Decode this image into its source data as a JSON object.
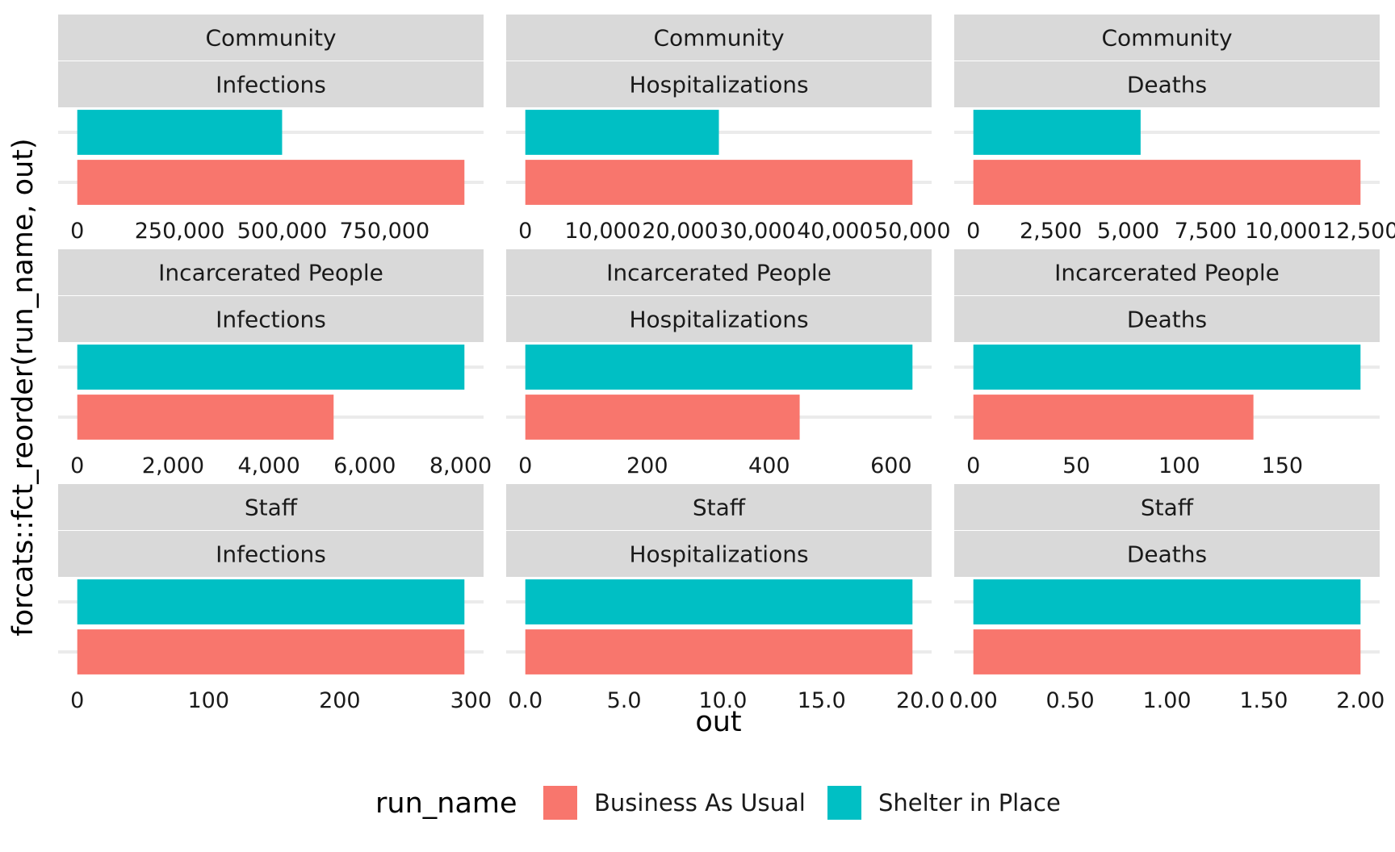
{
  "chart_data": {
    "type": "bar",
    "orientation": "horizontal",
    "facet_layout": "3x3 grid, independent x scales",
    "xlabel": "out",
    "ylabel": "forcats::fct_reorder(run_name, out)",
    "grid": true,
    "legend": {
      "position": "bottom",
      "title": "run_name",
      "entries": [
        {
          "name": "Business As Usual",
          "color": "#F8766D"
        },
        {
          "name": "Shelter in Place",
          "color": "#00BFC4"
        }
      ]
    },
    "panels": [
      {
        "strip_top": "Community",
        "strip_bottom": "Infections",
        "ticks": [
          0,
          250000,
          500000,
          750000
        ],
        "tick_labels": [
          "0",
          "250,000",
          "500,000",
          "750,000"
        ],
        "xlim": [
          0,
          945000
        ],
        "bars": [
          {
            "series": "Shelter in Place",
            "value": 500000
          },
          {
            "series": "Business As Usual",
            "value": 945000
          }
        ]
      },
      {
        "strip_top": "Community",
        "strip_bottom": "Hospitalizations",
        "ticks": [
          0,
          10000,
          20000,
          30000,
          40000,
          50000
        ],
        "tick_labels": [
          "0",
          "10,000",
          "20,000",
          "30,000",
          "40,000",
          "50,000"
        ],
        "xlim": [
          0,
          50000
        ],
        "bars": [
          {
            "series": "Shelter in Place",
            "value": 25000
          },
          {
            "series": "Business As Usual",
            "value": 50000
          }
        ]
      },
      {
        "strip_top": "Community",
        "strip_bottom": "Deaths",
        "ticks": [
          0,
          2500,
          5000,
          7500,
          10000,
          12500
        ],
        "tick_labels": [
          "0",
          "2,500",
          "5,000",
          "7,500",
          "10,000",
          "12,500"
        ],
        "xlim": [
          0,
          12500
        ],
        "bars": [
          {
            "series": "Shelter in Place",
            "value": 5400
          },
          {
            "series": "Business As Usual",
            "value": 12500
          }
        ]
      },
      {
        "strip_top": "Incarcerated People",
        "strip_bottom": "Infections",
        "ticks": [
          0,
          2000,
          4000,
          6000,
          8000
        ],
        "tick_labels": [
          "0",
          "2,000",
          "4,000",
          "6,000",
          "8,000"
        ],
        "xlim": [
          0,
          8080
        ],
        "bars": [
          {
            "series": "Shelter in Place",
            "value": 8080
          },
          {
            "series": "Business As Usual",
            "value": 5350
          }
        ]
      },
      {
        "strip_top": "Incarcerated People",
        "strip_bottom": "Hospitalizations",
        "ticks": [
          0,
          200,
          400,
          600
        ],
        "tick_labels": [
          "0",
          "200",
          "400",
          "600"
        ],
        "xlim": [
          0,
          635
        ],
        "bars": [
          {
            "series": "Shelter in Place",
            "value": 635
          },
          {
            "series": "Business As Usual",
            "value": 450
          }
        ]
      },
      {
        "strip_top": "Incarcerated People",
        "strip_bottom": "Deaths",
        "ticks": [
          0,
          50,
          100,
          150
        ],
        "tick_labels": [
          "0",
          "50",
          "100",
          "150"
        ],
        "xlim": [
          0,
          188
        ],
        "bars": [
          {
            "series": "Shelter in Place",
            "value": 188
          },
          {
            "series": "Business As Usual",
            "value": 136
          }
        ]
      },
      {
        "strip_top": "Staff",
        "strip_bottom": "Infections",
        "ticks": [
          0,
          100,
          200,
          300
        ],
        "tick_labels": [
          "0",
          "100",
          "200",
          "300"
        ],
        "xlim": [
          0,
          295
        ],
        "bars": [
          {
            "series": "Shelter in Place",
            "value": 295
          },
          {
            "series": "Business As Usual",
            "value": 295
          }
        ]
      },
      {
        "strip_top": "Staff",
        "strip_bottom": "Hospitalizations",
        "ticks": [
          0,
          5,
          10,
          15,
          20
        ],
        "tick_labels": [
          "0.0",
          "5.0",
          "10.0",
          "15.0",
          "20.0"
        ],
        "xlim": [
          0,
          19.6
        ],
        "bars": [
          {
            "series": "Shelter in Place",
            "value": 19.6
          },
          {
            "series": "Business As Usual",
            "value": 19.6
          }
        ]
      },
      {
        "strip_top": "Staff",
        "strip_bottom": "Deaths",
        "ticks": [
          0,
          0.5,
          1,
          1.5,
          2
        ],
        "tick_labels": [
          "0.00",
          "0.50",
          "1.00",
          "1.50",
          "2.00"
        ],
        "xlim": [
          0,
          2
        ],
        "bars": [
          {
            "series": "Shelter in Place",
            "value": 2
          },
          {
            "series": "Business As Usual",
            "value": 2
          }
        ]
      }
    ]
  }
}
